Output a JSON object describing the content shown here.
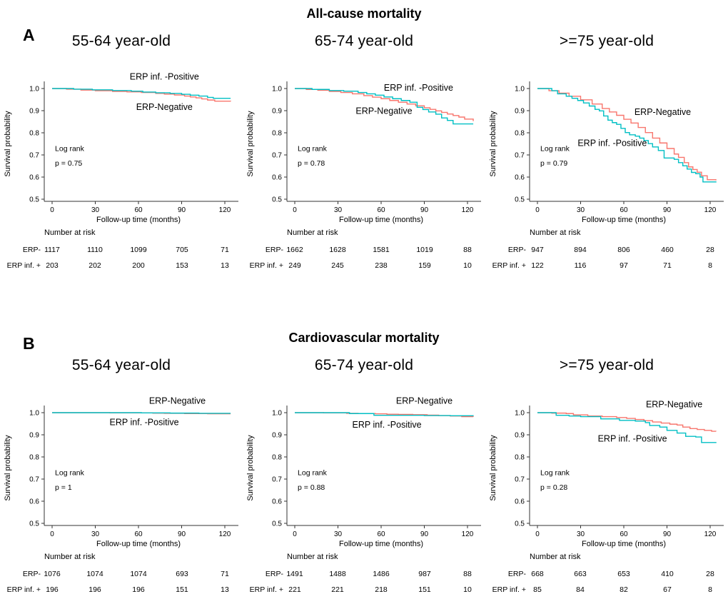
{
  "colors": {
    "negative": "#F8766D",
    "positive": "#00BFC4",
    "axis": "#333333",
    "text": "#000000"
  },
  "sections": [
    {
      "label": "A",
      "title": "All-cause mortality"
    },
    {
      "label": "B",
      "title": "Cardiovascular mortality"
    }
  ],
  "chart_data": [
    {
      "type": "line",
      "section": "A",
      "title": "55-64 year-old",
      "xlabel": "Follow-up time (months)",
      "ylabel": "Survival probability",
      "xlim": [
        0,
        124
      ],
      "ylim": [
        0.5,
        1.0
      ],
      "xticks": [
        0,
        30,
        60,
        90,
        120
      ],
      "yticks": [
        0.5,
        0.6,
        0.7,
        0.8,
        0.9,
        1.0
      ],
      "log_rank": "Log rank",
      "p_value": "p = 0.75",
      "series": [
        {
          "name": "ERP-Negative",
          "color": "#F8766D",
          "x": [
            0,
            10,
            20,
            30,
            42,
            52,
            62,
            72,
            78,
            85,
            92,
            96,
            100,
            104,
            108,
            113,
            124
          ],
          "y": [
            1.0,
            0.997,
            0.993,
            0.99,
            0.987,
            0.985,
            0.982,
            0.978,
            0.975,
            0.971,
            0.966,
            0.962,
            0.958,
            0.953,
            0.948,
            0.943,
            0.942
          ]
        },
        {
          "name": "ERP inf. -Positive",
          "color": "#00BFC4",
          "x": [
            0,
            15,
            28,
            42,
            55,
            63,
            72,
            82,
            90,
            96,
            102,
            108,
            112,
            124
          ],
          "y": [
            1.0,
            0.997,
            0.994,
            0.991,
            0.988,
            0.984,
            0.981,
            0.978,
            0.974,
            0.97,
            0.966,
            0.96,
            0.956,
            0.956
          ]
        }
      ],
      "annotations": [
        {
          "text": "ERP inf. -Positive",
          "x": 78,
          "y": 1.04
        },
        {
          "text": "ERP-Negative",
          "x": 78,
          "y": 0.903
        }
      ],
      "risk_table": {
        "title": "Number at risk",
        "times": [
          0,
          30,
          60,
          90,
          120
        ],
        "rows": [
          {
            "label": "ERP-",
            "values": [
              1117,
              1110,
              1099,
              705,
              71
            ]
          },
          {
            "label": "ERP inf. +",
            "values": [
              203,
              202,
              200,
              153,
              13
            ]
          }
        ]
      }
    },
    {
      "type": "line",
      "section": "A",
      "title": "65-74 year-old",
      "xlabel": "Follow-up time (months)",
      "ylabel": "Survival probability",
      "xlim": [
        0,
        124
      ],
      "ylim": [
        0.5,
        1.0
      ],
      "xticks": [
        0,
        30,
        60,
        90,
        120
      ],
      "yticks": [
        0.5,
        0.6,
        0.7,
        0.8,
        0.9,
        1.0
      ],
      "log_rank": "Log rank",
      "p_value": "p = 0.78",
      "series": [
        {
          "name": "ERP-Negative",
          "color": "#F8766D",
          "x": [
            0,
            8,
            16,
            24,
            32,
            40,
            48,
            54,
            60,
            66,
            72,
            78,
            84,
            90,
            94,
            98,
            102,
            106,
            110,
            114,
            118,
            124
          ],
          "y": [
            1.0,
            0.996,
            0.992,
            0.987,
            0.982,
            0.976,
            0.968,
            0.961,
            0.954,
            0.946,
            0.938,
            0.93,
            0.922,
            0.913,
            0.906,
            0.899,
            0.892,
            0.885,
            0.878,
            0.871,
            0.862,
            0.853
          ]
        },
        {
          "name": "ERP inf. -Positive",
          "color": "#00BFC4",
          "x": [
            0,
            12,
            24,
            34,
            44,
            50,
            56,
            62,
            68,
            74,
            80,
            85,
            89,
            93,
            98,
            102,
            106,
            110,
            124
          ],
          "y": [
            1.0,
            0.996,
            0.991,
            0.988,
            0.982,
            0.976,
            0.97,
            0.962,
            0.954,
            0.946,
            0.938,
            0.915,
            0.905,
            0.894,
            0.884,
            0.867,
            0.856,
            0.84,
            0.84
          ]
        }
      ],
      "annotations": [
        {
          "text": "ERP inf. -Positive",
          "x": 86,
          "y": 0.99
        },
        {
          "text": "ERP-Negative",
          "x": 62,
          "y": 0.885
        }
      ],
      "risk_table": {
        "title": "Number at risk",
        "times": [
          0,
          30,
          60,
          90,
          120
        ],
        "rows": [
          {
            "label": "ERP-",
            "values": [
              1662,
              1628,
              1581,
              1019,
              88
            ]
          },
          {
            "label": "ERP inf. +",
            "values": [
              249,
              245,
              238,
              159,
              10
            ]
          }
        ]
      }
    },
    {
      "type": "line",
      "section": "A",
      "title": ">=75 year-old",
      "xlabel": "Follow-up time (months)",
      "ylabel": "Survival probability",
      "xlim": [
        0,
        124
      ],
      "ylim": [
        0.5,
        1.0
      ],
      "xticks": [
        0,
        30,
        60,
        90,
        120
      ],
      "yticks": [
        0.5,
        0.6,
        0.7,
        0.8,
        0.9,
        1.0
      ],
      "log_rank": "Log rank",
      "p_value": "p = 0.79",
      "series": [
        {
          "name": "ERP-Negative",
          "color": "#F8766D",
          "x": [
            0,
            8,
            15,
            22,
            30,
            38,
            45,
            50,
            55,
            60,
            65,
            70,
            75,
            80,
            85,
            90,
            95,
            98,
            102,
            105,
            108,
            111,
            114,
            118,
            124
          ],
          "y": [
            1.0,
            0.99,
            0.979,
            0.965,
            0.949,
            0.93,
            0.91,
            0.894,
            0.879,
            0.861,
            0.844,
            0.824,
            0.801,
            0.776,
            0.754,
            0.729,
            0.704,
            0.689,
            0.665,
            0.646,
            0.634,
            0.622,
            0.606,
            0.588,
            0.585
          ]
        },
        {
          "name": "ERP inf. -Positive",
          "color": "#00BFC4",
          "x": [
            0,
            10,
            14,
            20,
            24,
            28,
            32,
            36,
            40,
            43,
            46,
            49,
            52,
            55,
            58,
            61,
            64,
            68,
            71,
            74,
            77,
            80,
            84,
            88,
            95,
            98,
            101,
            104,
            107,
            110,
            113,
            115,
            124
          ],
          "y": [
            1.0,
            0.99,
            0.976,
            0.965,
            0.956,
            0.946,
            0.935,
            0.921,
            0.906,
            0.899,
            0.876,
            0.857,
            0.846,
            0.838,
            0.82,
            0.801,
            0.791,
            0.785,
            0.776,
            0.765,
            0.751,
            0.736,
            0.72,
            0.686,
            0.68,
            0.665,
            0.651,
            0.636,
            0.621,
            0.615,
            0.6,
            0.578,
            0.576
          ]
        }
      ],
      "annotations": [
        {
          "text": "ERP-Negative",
          "x": 87,
          "y": 0.88
        },
        {
          "text": "ERP inf. -Positive",
          "x": 52,
          "y": 0.74
        }
      ],
      "risk_table": {
        "title": "Number at risk",
        "times": [
          0,
          30,
          60,
          90,
          120
        ],
        "rows": [
          {
            "label": "ERP-",
            "values": [
              947,
              894,
              806,
              460,
              28
            ]
          },
          {
            "label": "ERP inf. +",
            "values": [
              122,
              116,
              97,
              71,
              8
            ]
          }
        ]
      }
    },
    {
      "type": "line",
      "section": "B",
      "title": "55-64 year-old",
      "xlabel": "Follow-up time (months)",
      "ylabel": "Survival probability",
      "xlim": [
        0,
        124
      ],
      "ylim": [
        0.5,
        1.0
      ],
      "xticks": [
        0,
        30,
        60,
        90,
        120
      ],
      "yticks": [
        0.5,
        0.6,
        0.7,
        0.8,
        0.9,
        1.0
      ],
      "log_rank": "Log rank",
      "p_value": "p = 1",
      "series": [
        {
          "name": "ERP-Negative",
          "color": "#F8766D",
          "x": [
            0,
            40,
            70,
            78,
            92,
            108,
            124
          ],
          "y": [
            1.0,
            0.999,
            0.998,
            0.997,
            0.996,
            0.995,
            0.995
          ]
        },
        {
          "name": "ERP inf. -Positive",
          "color": "#00BFC4",
          "x": [
            0,
            62,
            82,
            102,
            124
          ],
          "y": [
            1.0,
            0.999,
            0.998,
            0.997,
            0.997
          ]
        }
      ],
      "annotations": [
        {
          "text": "ERP-Negative",
          "x": 87,
          "y": 1.04
        },
        {
          "text": "ERP inf. -Positive",
          "x": 64,
          "y": 0.943
        }
      ],
      "risk_table": {
        "title": "Number at risk",
        "times": [
          0,
          30,
          60,
          90,
          120
        ],
        "rows": [
          {
            "label": "ERP-",
            "values": [
              1076,
              1074,
              1074,
              693,
              71
            ]
          },
          {
            "label": "ERP inf. +",
            "values": [
              196,
              196,
              196,
              151,
              13
            ]
          }
        ]
      }
    },
    {
      "type": "line",
      "section": "B",
      "title": "65-74 year-old",
      "xlabel": "Follow-up time (months)",
      "ylabel": "Survival probability",
      "xlim": [
        0,
        124
      ],
      "ylim": [
        0.5,
        1.0
      ],
      "xticks": [
        0,
        30,
        60,
        90,
        120
      ],
      "yticks": [
        0.5,
        0.6,
        0.7,
        0.8,
        0.9,
        1.0
      ],
      "log_rank": "Log rank",
      "p_value": "p = 0.88",
      "series": [
        {
          "name": "ERP-Negative",
          "color": "#F8766D",
          "x": [
            0,
            20,
            36,
            44,
            56,
            64,
            72,
            82,
            92,
            100,
            108,
            116,
            124
          ],
          "y": [
            1.0,
            0.999,
            0.997,
            0.996,
            0.995,
            0.993,
            0.992,
            0.991,
            0.989,
            0.987,
            0.985,
            0.982,
            0.981
          ]
        },
        {
          "name": "ERP inf. -Positive",
          "color": "#00BFC4",
          "x": [
            0,
            38,
            55,
            90,
            108,
            124
          ],
          "y": [
            1.0,
            0.996,
            0.988,
            0.987,
            0.986,
            0.985
          ]
        }
      ],
      "annotations": [
        {
          "text": "ERP-Negative",
          "x": 90,
          "y": 1.04
        },
        {
          "text": "ERP inf. -Positive",
          "x": 64,
          "y": 0.933
        }
      ],
      "risk_table": {
        "title": "Number at risk",
        "times": [
          0,
          30,
          60,
          90,
          120
        ],
        "rows": [
          {
            "label": "ERP-",
            "values": [
              1491,
              1488,
              1486,
              987,
              88
            ]
          },
          {
            "label": "ERP inf. +",
            "values": [
              221,
              221,
              218,
              151,
              10
            ]
          }
        ]
      }
    },
    {
      "type": "line",
      "section": "B",
      "title": ">=75 year-old",
      "xlabel": "Follow-up time (months)",
      "ylabel": "Survival probability",
      "xlim": [
        0,
        124
      ],
      "ylim": [
        0.5,
        1.0
      ],
      "xticks": [
        0,
        30,
        60,
        90,
        120
      ],
      "yticks": [
        0.5,
        0.6,
        0.7,
        0.8,
        0.9,
        1.0
      ],
      "log_rank": "Log rank",
      "p_value": "p = 0.28",
      "series": [
        {
          "name": "ERP-Negative",
          "color": "#F8766D",
          "x": [
            0,
            10,
            20,
            25,
            35,
            45,
            55,
            62,
            68,
            74,
            80,
            86,
            92,
            97,
            101,
            106,
            111,
            116,
            121,
            124
          ],
          "y": [
            1.0,
            0.998,
            0.996,
            0.99,
            0.985,
            0.982,
            0.978,
            0.974,
            0.969,
            0.964,
            0.958,
            0.953,
            0.948,
            0.944,
            0.935,
            0.928,
            0.924,
            0.92,
            0.916,
            0.915
          ]
        },
        {
          "name": "ERP inf. -Positive",
          "color": "#00BFC4",
          "x": [
            0,
            13,
            22,
            30,
            44,
            57,
            68,
            75,
            78,
            85,
            90,
            97,
            103,
            110,
            114,
            124
          ],
          "y": [
            1.0,
            0.988,
            0.985,
            0.982,
            0.972,
            0.965,
            0.962,
            0.955,
            0.942,
            0.935,
            0.92,
            0.908,
            0.893,
            0.89,
            0.865,
            0.863
          ]
        }
      ],
      "annotations": [
        {
          "text": "ERP-Negative",
          "x": 95,
          "y": 1.025
        },
        {
          "text": "ERP inf. -Positive",
          "x": 66,
          "y": 0.87
        }
      ],
      "risk_table": {
        "title": "Number at risk",
        "times": [
          0,
          30,
          60,
          90,
          120
        ],
        "rows": [
          {
            "label": "ERP-",
            "values": [
              668,
              663,
              653,
              410,
              28
            ]
          },
          {
            "label": "ERP inf. +",
            "values": [
              85,
              84,
              82,
              67,
              8
            ]
          }
        ]
      }
    }
  ]
}
